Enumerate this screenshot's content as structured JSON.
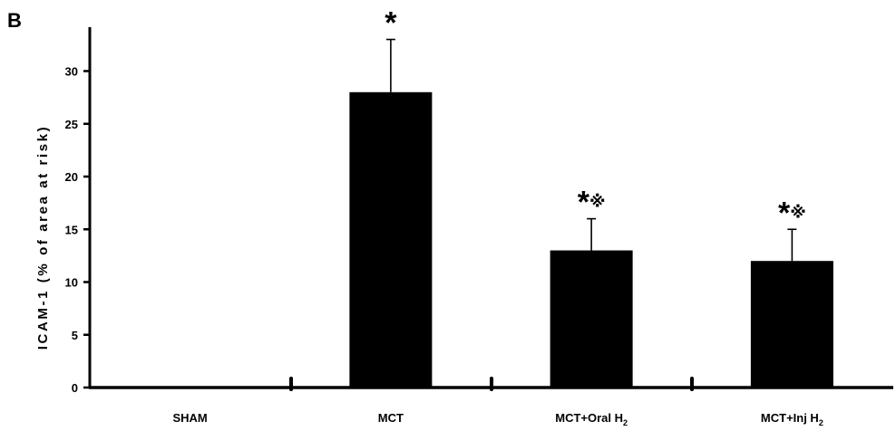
{
  "panel_label": "B",
  "chart_data": {
    "type": "bar",
    "title": "",
    "xlabel": "",
    "ylabel": "ICAM-1 (% of area at risk)",
    "ylim": [
      0,
      35
    ],
    "yticks": [
      0,
      5,
      10,
      15,
      20,
      25,
      30
    ],
    "categories": [
      "SHAM",
      "MCT",
      "MCT+Oral H2",
      "MCT+Inj H2"
    ],
    "category_labels": [
      {
        "main": "SHAM",
        "sub": ""
      },
      {
        "main": "MCT",
        "sub": ""
      },
      {
        "main": "MCT+Oral H",
        "sub": "2"
      },
      {
        "main": "MCT+Inj H",
        "sub": "2"
      }
    ],
    "values": [
      0,
      28,
      13,
      12
    ],
    "error_upper": [
      0,
      5,
      3,
      3
    ],
    "annotations": [
      {
        "star": "",
        "mark": ""
      },
      {
        "star": "*",
        "mark": ""
      },
      {
        "star": "*",
        "mark": "※"
      },
      {
        "star": "*",
        "mark": "※"
      }
    ],
    "bar_color": "#000000",
    "grid": false,
    "legend": "none"
  }
}
